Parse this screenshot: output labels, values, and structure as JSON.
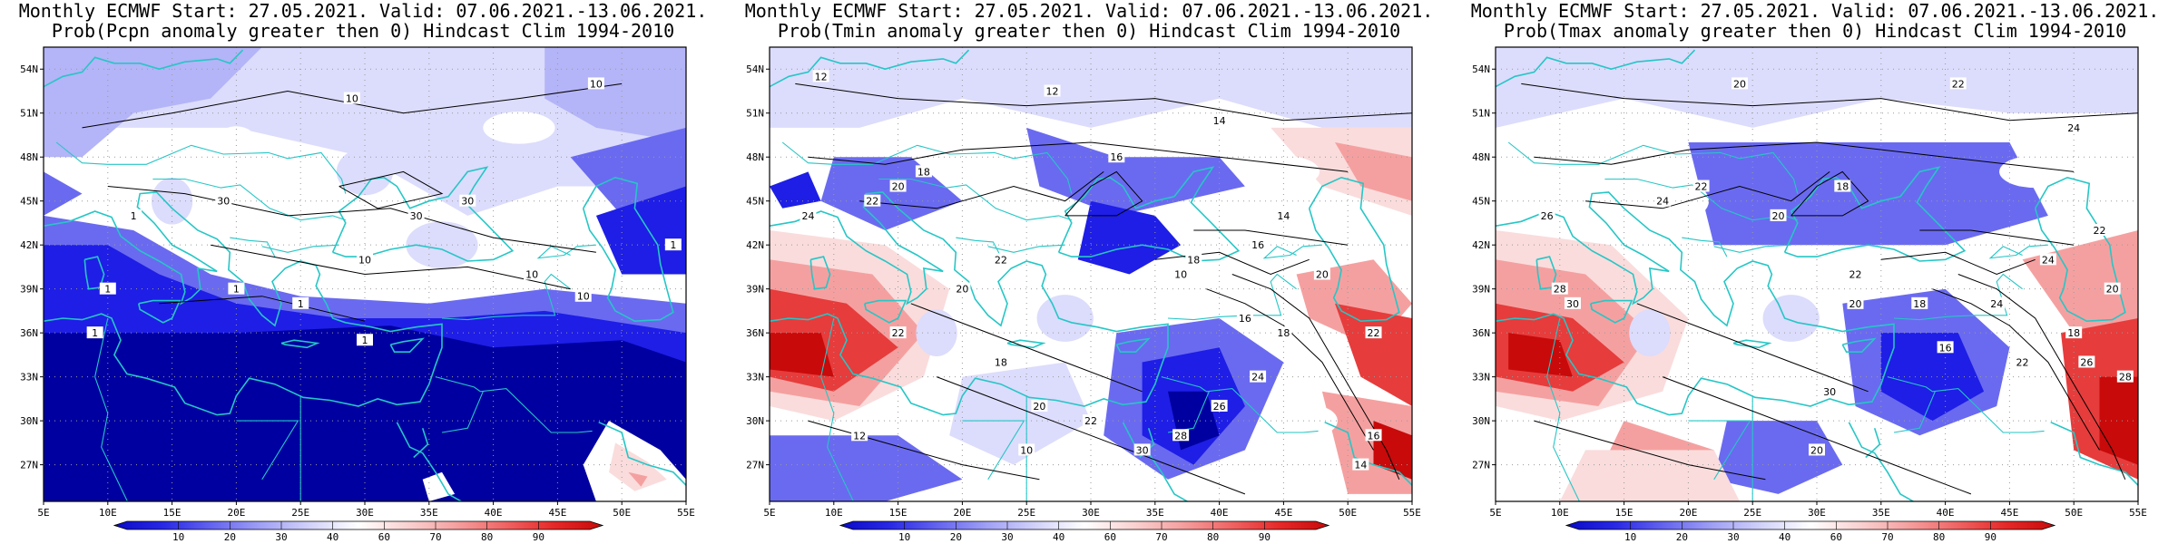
{
  "panels": [
    {
      "title_line1": "Monthly ECMWF Start: 27.05.2021. Valid: 07.06.2021.-13.06.2021.",
      "title_line2": "Prob(Pcpn anomaly greater then 0) Hindcast Clim 1994-2010",
      "variable": "Pcpn",
      "contour_labels": [
        "10",
        "10",
        "30",
        "30",
        "10",
        "10",
        "1",
        "1",
        "1",
        "1",
        "1",
        "1",
        "10",
        "1",
        "30"
      ]
    },
    {
      "title_line1": "Monthly ECMWF Start: 27.05.2021. Valid: 07.06.2021.-13.06.2021.",
      "title_line2": "Prob(Tmin anomaly greater then 0) Hindcast Clim 1994-2010",
      "variable": "Tmin",
      "contour_labels": [
        "12",
        "12",
        "14",
        "16",
        "18",
        "20",
        "22",
        "24",
        "20",
        "22",
        "18",
        "16",
        "14",
        "10",
        "16",
        "18",
        "20",
        "22",
        "24",
        "26",
        "28",
        "30",
        "22",
        "20",
        "18",
        "16",
        "14",
        "12",
        "10",
        "22"
      ]
    },
    {
      "title_line1": "Monthly ECMWF Start: 27.05.2021. Valid: 07.06.2021.-13.06.2021.",
      "title_line2": "Prob(Tmax anomaly greater then 0) Hindcast Clim 1994-2010",
      "variable": "Tmax",
      "contour_labels": [
        "20",
        "22",
        "24",
        "18",
        "20",
        "22",
        "24",
        "26",
        "28",
        "30",
        "22",
        "20",
        "18",
        "16",
        "24",
        "22",
        "20",
        "18",
        "26",
        "28",
        "22",
        "24",
        "30",
        "20"
      ]
    }
  ],
  "axes": {
    "x_ticks": [
      "5E",
      "10E",
      "15E",
      "20E",
      "25E",
      "30E",
      "35E",
      "40E",
      "45E",
      "50E",
      "55E"
    ],
    "y_ticks": [
      "54N",
      "51N",
      "48N",
      "45N",
      "42N",
      "39N",
      "36N",
      "33N",
      "30N",
      "27N"
    ]
  },
  "colorbar": {
    "labels": [
      "10",
      "20",
      "30",
      "40",
      "60",
      "70",
      "80",
      "90"
    ],
    "colors": [
      "#0a0ac8",
      "#2828e6",
      "#6464f0",
      "#a0a0f5",
      "#d2d2fa",
      "#ffffff",
      "#fad2d2",
      "#f5a0a0",
      "#f06464",
      "#e62828",
      "#c80a0a"
    ]
  },
  "colors": {
    "deep_blue": "#0000a0",
    "blue": "#1e1ee6",
    "mid_blue": "#6a6af0",
    "light_blue": "#b4b4f8",
    "pale_blue": "#dcdcfc",
    "white": "#ffffff",
    "pale_red": "#fadcdc",
    "light_red": "#f5a0a0",
    "red": "#e63c3c",
    "dark_red": "#c80a0a",
    "coastline": "#26c6c6",
    "contour": "#000000"
  }
}
